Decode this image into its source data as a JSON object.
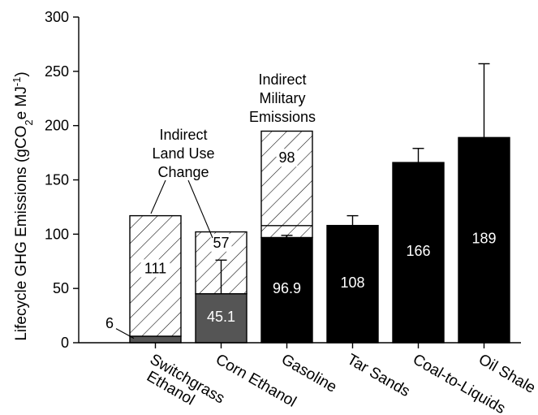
{
  "chart_data": {
    "type": "bar",
    "ylabel_main": "Lifecycle GHG Emissions (gCO",
    "ylabel_sub2": "2",
    "ylabel_mid": "e MJ",
    "ylabel_sup": "-1",
    "ylabel_end": ")",
    "ylim": [
      0,
      300
    ],
    "yticks": [
      "0",
      "50",
      "100",
      "150",
      "200",
      "250",
      "300"
    ],
    "categories": [
      {
        "lines": [
          "Switchgrass",
          "Ethanol"
        ]
      },
      {
        "lines": [
          "Corn Ethanol"
        ]
      },
      {
        "lines": [
          "Gasoline"
        ]
      },
      {
        "lines": [
          "Tar Sands"
        ]
      },
      {
        "lines": [
          "Coal-to-Liquids"
        ]
      },
      {
        "lines": [
          "Oil Shale"
        ]
      }
    ],
    "bars": [
      {
        "segments": [
          {
            "kind": "direct-gray",
            "value": 6,
            "label": "6"
          },
          {
            "kind": "indirect-hatch",
            "value": 111,
            "label": "111"
          }
        ],
        "error": null
      },
      {
        "segments": [
          {
            "kind": "direct-gray",
            "value": 45.1,
            "label": "45.1"
          },
          {
            "kind": "indirect-hatch",
            "value": 57,
            "label": "57"
          }
        ],
        "error": 31
      },
      {
        "segments": [
          {
            "kind": "direct-black",
            "value": 96.9,
            "label": "96.9"
          },
          {
            "kind": "indirect-hatch",
            "value": 98,
            "label": "98"
          }
        ],
        "error": 2
      },
      {
        "segments": [
          {
            "kind": "direct-black",
            "value": 108,
            "label": "108"
          }
        ],
        "error": 9
      },
      {
        "segments": [
          {
            "kind": "direct-black",
            "value": 166,
            "label": "166"
          }
        ],
        "error": 13
      },
      {
        "segments": [
          {
            "kind": "direct-black",
            "value": 189,
            "label": "189"
          }
        ],
        "error": 68
      }
    ],
    "annotations": {
      "land_use": [
        "Indirect",
        "Land Use",
        "Change"
      ],
      "military": [
        "Indirect",
        "Military",
        "Emissions"
      ]
    },
    "colors": {
      "direct_gray": "#555555",
      "direct_black": "#000000",
      "hatch": "#000000",
      "axis": "#000000"
    }
  }
}
